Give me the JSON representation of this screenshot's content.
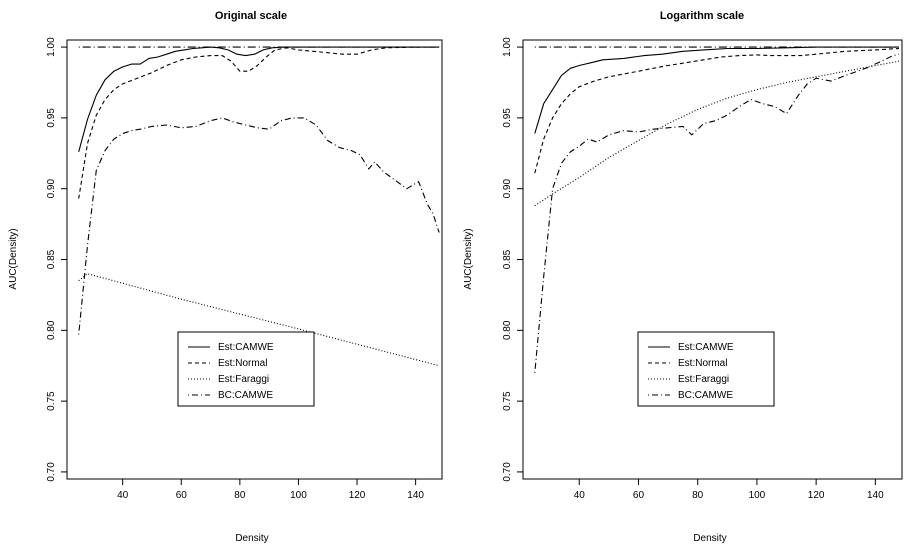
{
  "chart_data": [
    {
      "type": "line",
      "title": "Original scale",
      "xlabel": "Density",
      "ylabel": "AUC(Density)",
      "xlim": [
        21,
        149
      ],
      "ylim": [
        0.695,
        1.005
      ],
      "xticks": [
        40,
        60,
        80,
        100,
        120,
        140
      ],
      "yticks": [
        0.7,
        0.75,
        0.8,
        0.85,
        0.9,
        0.95,
        1.0
      ],
      "ytick_labels": [
        "0.70",
        "0.75",
        "0.80",
        "0.85",
        "0.90",
        "0.95",
        "1.00"
      ],
      "grid": false,
      "legend_position": "lower-center",
      "series": [
        {
          "name": "Est:CAMWE",
          "style": "solid",
          "x": [
            25,
            28,
            31,
            34,
            37,
            40,
            43,
            46,
            49,
            52,
            55,
            58,
            61,
            64,
            67,
            70,
            73,
            76,
            79,
            82,
            85,
            88,
            91,
            95,
            100,
            110,
            120,
            130,
            140,
            148
          ],
          "y": [
            0.926,
            0.949,
            0.966,
            0.977,
            0.983,
            0.986,
            0.988,
            0.988,
            0.992,
            0.993,
            0.995,
            0.997,
            0.998,
            0.999,
            0.9995,
            1.0,
            0.9995,
            0.998,
            0.995,
            0.994,
            0.995,
            0.998,
            0.9995,
            1.0,
            1.0,
            1.0,
            1.0,
            1.0,
            1.0,
            1.0
          ]
        },
        {
          "name": "Est:Normal",
          "style": "dashed",
          "x": [
            25,
            28,
            31,
            34,
            37,
            40,
            45,
            50,
            55,
            60,
            65,
            70,
            74,
            77,
            80,
            83,
            86,
            89,
            92,
            96,
            100,
            105,
            110,
            115,
            120,
            125,
            130,
            140,
            148
          ],
          "y": [
            0.893,
            0.932,
            0.952,
            0.963,
            0.97,
            0.974,
            0.978,
            0.982,
            0.987,
            0.991,
            0.993,
            0.994,
            0.994,
            0.99,
            0.983,
            0.983,
            0.987,
            0.993,
            0.998,
            0.9995,
            0.998,
            0.997,
            0.996,
            0.995,
            0.995,
            0.998,
            0.9995,
            1.0,
            1.0
          ]
        },
        {
          "name": "Est:Faraggi",
          "style": "dotted",
          "x": [
            25,
            28,
            60,
            100,
            148
          ],
          "y": [
            0.835,
            0.84,
            0.822,
            0.801,
            0.775
          ]
        },
        {
          "name": "BC:CAMWE",
          "style": "dotdash",
          "x": [
            25,
            28,
            31,
            34,
            37,
            40,
            43,
            46,
            50,
            55,
            60,
            65,
            70,
            74,
            78,
            82,
            86,
            90,
            94,
            98,
            102,
            106,
            110,
            114,
            118,
            121,
            124,
            126,
            129,
            133,
            137,
            141,
            144,
            146,
            148
          ],
          "y": [
            0.797,
            0.86,
            0.913,
            0.927,
            0.935,
            0.939,
            0.941,
            0.942,
            0.944,
            0.945,
            0.943,
            0.944,
            0.948,
            0.95,
            0.947,
            0.945,
            0.943,
            0.942,
            0.948,
            0.95,
            0.95,
            0.945,
            0.934,
            0.929,
            0.927,
            0.924,
            0.914,
            0.919,
            0.912,
            0.906,
            0.9,
            0.905,
            0.889,
            0.882,
            0.869
          ]
        },
        {
          "name": "",
          "style": "dotdash-long",
          "x": [
            25,
            148
          ],
          "y": [
            1.0,
            1.0
          ]
        }
      ]
    },
    {
      "type": "line",
      "title": "Logarithm scale",
      "xlabel": "Density",
      "ylabel": "AUC(Density)",
      "xlim": [
        21,
        149
      ],
      "ylim": [
        0.695,
        1.005
      ],
      "xticks": [
        40,
        60,
        80,
        100,
        120,
        140
      ],
      "yticks": [
        0.7,
        0.75,
        0.8,
        0.85,
        0.9,
        0.95,
        1.0
      ],
      "ytick_labels": [
        "0.70",
        "0.75",
        "0.80",
        "0.85",
        "0.90",
        "0.95",
        "1.00"
      ],
      "grid": false,
      "legend_position": "lower-center",
      "series": [
        {
          "name": "Est:CAMWE",
          "style": "solid",
          "x": [
            25,
            28,
            31,
            34,
            37,
            40,
            44,
            48,
            55,
            62,
            68,
            75,
            82,
            90,
            100,
            110,
            120,
            130,
            140,
            148
          ],
          "y": [
            0.939,
            0.96,
            0.97,
            0.98,
            0.985,
            0.987,
            0.989,
            0.991,
            0.992,
            0.994,
            0.995,
            0.997,
            0.998,
            0.999,
            0.999,
            0.9995,
            1.0,
            1.0,
            1.0,
            1.0
          ]
        },
        {
          "name": "Est:Normal",
          "style": "dashed",
          "x": [
            25,
            28,
            31,
            34,
            37,
            40,
            45,
            50,
            55,
            60,
            65,
            70,
            76,
            82,
            88,
            94,
            100,
            105,
            110,
            115,
            120,
            125,
            130,
            140,
            148
          ],
          "y": [
            0.911,
            0.935,
            0.95,
            0.96,
            0.967,
            0.972,
            0.976,
            0.979,
            0.981,
            0.983,
            0.985,
            0.987,
            0.989,
            0.991,
            0.993,
            0.994,
            0.9945,
            0.994,
            0.994,
            0.994,
            0.995,
            0.996,
            0.997,
            0.998,
            0.999
          ]
        },
        {
          "name": "Est:Faraggi",
          "style": "dotted",
          "x": [
            25,
            30,
            40,
            50,
            60,
            70,
            80,
            90,
            100,
            110,
            120,
            130,
            140,
            148
          ],
          "y": [
            0.888,
            0.895,
            0.908,
            0.922,
            0.934,
            0.946,
            0.956,
            0.964,
            0.97,
            0.975,
            0.979,
            0.983,
            0.987,
            0.99
          ]
        },
        {
          "name": "BC:CAMWE",
          "style": "dotdash",
          "x": [
            25,
            28,
            31,
            34,
            37,
            40,
            43,
            46,
            50,
            55,
            60,
            65,
            70,
            75,
            78,
            82,
            86,
            90,
            94,
            98,
            102,
            106,
            110,
            114,
            117,
            120,
            125,
            130,
            134,
            138,
            142,
            146,
            148
          ],
          "y": [
            0.77,
            0.838,
            0.9,
            0.918,
            0.926,
            0.93,
            0.935,
            0.933,
            0.938,
            0.941,
            0.94,
            0.942,
            0.943,
            0.944,
            0.938,
            0.946,
            0.948,
            0.952,
            0.958,
            0.963,
            0.96,
            0.958,
            0.953,
            0.966,
            0.974,
            0.978,
            0.976,
            0.98,
            0.983,
            0.986,
            0.99,
            0.994,
            0.995
          ]
        },
        {
          "name": "",
          "style": "dotdash-long",
          "x": [
            25,
            148
          ],
          "y": [
            1.0,
            1.0
          ]
        }
      ]
    }
  ]
}
